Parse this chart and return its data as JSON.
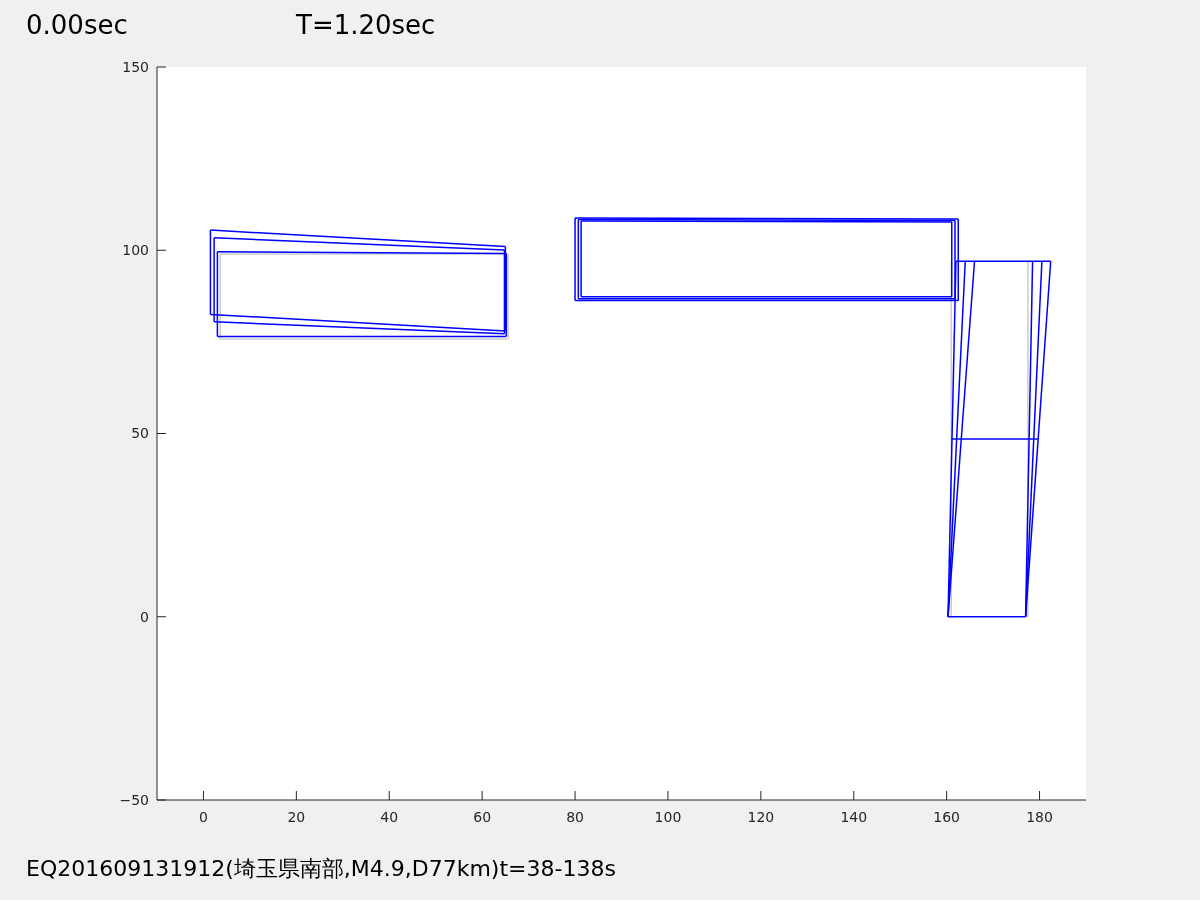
{
  "chart_data": {
    "type": "line",
    "title": "0.00sec",
    "subtitle": "T=1.20sec",
    "annotations": [
      "EQ201609131912(埼玉県南部,M4.9,D77km)t=38-138s"
    ],
    "xlim": [
      -10,
      190
    ],
    "ylim": [
      -50,
      150
    ],
    "xticks": [
      0,
      20,
      40,
      60,
      80,
      100,
      120,
      140,
      160,
      180
    ],
    "yticks": [
      -50,
      0,
      50,
      100,
      150
    ],
    "grid": false,
    "line_style": "solid",
    "series": [
      {
        "color": "#cccccc",
        "x": [
          3.6,
          65.5
        ],
        "values": [
          99,
          99
        ]
      },
      {
        "color": "#cccccc",
        "x": [
          3.6,
          65.5
        ],
        "values": [
          75.8,
          75.8
        ]
      },
      {
        "color": "#cccccc",
        "x": [
          3.6,
          3.6
        ],
        "values": [
          75.8,
          99
        ]
      },
      {
        "color": "#cccccc",
        "x": [
          65.6,
          65.6
        ],
        "values": [
          75.8,
          99
        ]
      },
      {
        "color": "#cccccc",
        "x": [
          161,
          161
        ],
        "values": [
          0,
          97
        ]
      },
      {
        "color": "#cccccc",
        "x": [
          177.5,
          177.5
        ],
        "values": [
          0,
          97
        ]
      },
      {
        "color": "#0000ff",
        "x": [
          1.5,
          65
        ],
        "values": [
          105.5,
          101
        ]
      },
      {
        "color": "#0000ff",
        "x": [
          1.5,
          65
        ],
        "values": [
          82.5,
          78
        ]
      },
      {
        "color": "#0000ff",
        "x": [
          1.5,
          1.5
        ],
        "values": [
          82.5,
          105.5
        ]
      },
      {
        "color": "#0000ff",
        "x": [
          65,
          65
        ],
        "values": [
          78,
          101
        ]
      },
      {
        "color": "#0000ff",
        "x": [
          2.3,
          64.8
        ],
        "values": [
          103.4,
          100.1
        ]
      },
      {
        "color": "#0000ff",
        "x": [
          2.3,
          64.8
        ],
        "values": [
          80.5,
          77.2
        ]
      },
      {
        "color": "#0000ff",
        "x": [
          2.3,
          2.3
        ],
        "values": [
          80.5,
          103.4
        ]
      },
      {
        "color": "#0000ff",
        "x": [
          64.8,
          64.8
        ],
        "values": [
          77.2,
          100.1
        ]
      },
      {
        "color": "#0000ff",
        "x": [
          3,
          65.2
        ],
        "values": [
          99.6,
          99.1
        ]
      },
      {
        "color": "#0000ff",
        "x": [
          3,
          65.2
        ],
        "values": [
          76.5,
          76.5
        ]
      },
      {
        "color": "#0000ff",
        "x": [
          3,
          3
        ],
        "values": [
          76.5,
          99.6
        ]
      },
      {
        "color": "#0000ff",
        "x": [
          65.2,
          65.2
        ],
        "values": [
          76.5,
          99.1
        ]
      },
      {
        "color": "#0000ff",
        "x": [
          80,
          162.5
        ],
        "values": [
          108.8,
          108.5
        ]
      },
      {
        "color": "#0000ff",
        "x": [
          80,
          162.5
        ],
        "values": [
          86.3,
          86.3
        ]
      },
      {
        "color": "#0000ff",
        "x": [
          80,
          80
        ],
        "values": [
          86.3,
          108.8
        ]
      },
      {
        "color": "#0000ff",
        "x": [
          162.5,
          162.5
        ],
        "values": [
          86.3,
          108.5
        ]
      },
      {
        "color": "#0000ff",
        "x": [
          80.7,
          161.8
        ],
        "values": [
          108.4,
          108.1
        ]
      },
      {
        "color": "#0000ff",
        "x": [
          80.7,
          161.8
        ],
        "values": [
          86.8,
          86.8
        ]
      },
      {
        "color": "#0000ff",
        "x": [
          80.7,
          80.7
        ],
        "values": [
          86.8,
          108.4
        ]
      },
      {
        "color": "#0000ff",
        "x": [
          161.8,
          161.8
        ],
        "values": [
          86.8,
          108.1
        ]
      },
      {
        "color": "#0000ff",
        "x": [
          81.3,
          161.1
        ],
        "values": [
          108,
          107.7
        ]
      },
      {
        "color": "#0000ff",
        "x": [
          81.3,
          161.1
        ],
        "values": [
          87.3,
          87.3
        ]
      },
      {
        "color": "#0000ff",
        "x": [
          81.3,
          81.3
        ],
        "values": [
          87.3,
          108
        ]
      },
      {
        "color": "#0000ff",
        "x": [
          161.1,
          161.1
        ],
        "values": [
          87.3,
          107.7
        ]
      },
      {
        "color": "#0000ff",
        "x": [
          160.3,
          177
        ],
        "values": [
          0,
          0
        ]
      },
      {
        "color": "#0000ff",
        "x": [
          162,
          182.4
        ],
        "values": [
          97,
          97
        ]
      },
      {
        "color": "#0000ff",
        "x": [
          161,
          179.6
        ],
        "values": [
          48.5,
          48.5
        ]
      },
      {
        "color": "#0000ff",
        "x": [
          160.3,
          166
        ],
        "values": [
          0,
          97
        ]
      },
      {
        "color": "#0000ff",
        "x": [
          160.3,
          164
        ],
        "values": [
          0,
          97
        ]
      },
      {
        "color": "#0000ff",
        "x": [
          160.3,
          162
        ],
        "values": [
          0,
          97
        ]
      },
      {
        "color": "#0000ff",
        "x": [
          177,
          182.4
        ],
        "values": [
          0,
          97
        ]
      },
      {
        "color": "#0000ff",
        "x": [
          177,
          180.5
        ],
        "values": [
          0,
          97
        ]
      },
      {
        "color": "#0000ff",
        "x": [
          177,
          178.5
        ],
        "values": [
          0,
          97
        ]
      }
    ]
  }
}
